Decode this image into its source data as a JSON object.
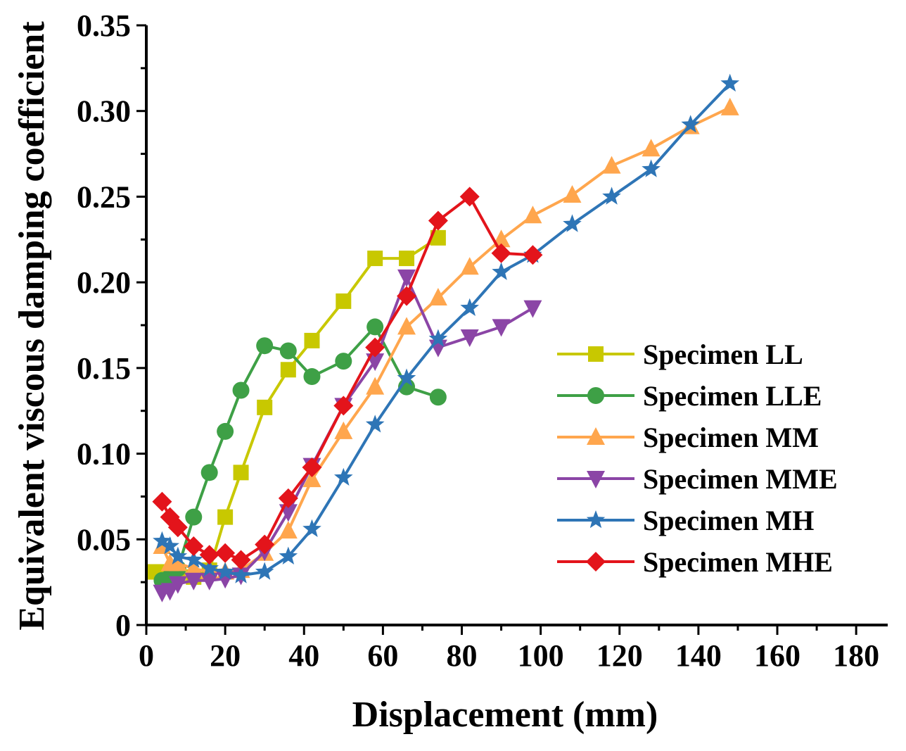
{
  "chart_data": {
    "type": "line",
    "xlabel": "Displacement (mm)",
    "ylabel": "Equivalent viscous damping coefficient",
    "xlim": [
      0,
      188
    ],
    "ylim": [
      0,
      0.35
    ],
    "x_ticks": [
      0,
      20,
      40,
      60,
      80,
      100,
      120,
      140,
      160,
      180
    ],
    "x_tick_labels": [
      "0",
      "20",
      "40",
      "60",
      "80",
      "100",
      "120",
      "140",
      "160",
      "180"
    ],
    "y_ticks": [
      0,
      0.05,
      0.1,
      0.15,
      0.2,
      0.25,
      0.3,
      0.35
    ],
    "y_tick_labels": [
      "0",
      "0.05",
      "0.10",
      "0.15",
      "0.20",
      "0.25",
      "0.30",
      "0.35"
    ],
    "grid": false,
    "legend_position": "right",
    "series": [
      {
        "name": "Specimen LL",
        "color": "#C8C800",
        "marker": "square",
        "x": [
          2,
          4,
          6,
          8,
          12,
          16,
          20,
          24,
          30,
          36,
          42,
          50,
          58,
          66,
          74
        ],
        "y": [
          0.031,
          0.031,
          0.03,
          0.029,
          0.028,
          0.032,
          0.063,
          0.089,
          0.127,
          0.149,
          0.166,
          0.189,
          0.214,
          0.214,
          0.226
        ]
      },
      {
        "name": "Specimen LLE",
        "color": "#3EA046",
        "marker": "circle",
        "x": [
          4,
          6,
          8,
          12,
          16,
          20,
          24,
          30,
          36,
          42,
          50,
          58,
          66,
          74
        ],
        "y": [
          0.026,
          0.028,
          0.033,
          0.063,
          0.089,
          0.113,
          0.137,
          0.163,
          0.16,
          0.145,
          0.154,
          0.174,
          0.139,
          0.133
        ]
      },
      {
        "name": "Specimen MM",
        "color": "#FFA64D",
        "marker": "triangle-up",
        "x": [
          4,
          6,
          8,
          12,
          16,
          20,
          24,
          30,
          36,
          42,
          50,
          58,
          66,
          74,
          82,
          90,
          98,
          108,
          118,
          128,
          138,
          148
        ],
        "y": [
          0.046,
          0.036,
          0.036,
          0.033,
          0.031,
          0.031,
          0.032,
          0.042,
          0.055,
          0.085,
          0.113,
          0.139,
          0.174,
          0.191,
          0.209,
          0.225,
          0.239,
          0.251,
          0.268,
          0.278,
          0.291,
          0.302
        ]
      },
      {
        "name": "Specimen MME",
        "color": "#8B45A6",
        "marker": "triangle-down",
        "x": [
          4,
          6,
          8,
          12,
          16,
          20,
          24,
          30,
          36,
          42,
          50,
          58,
          66,
          74,
          82,
          90,
          98
        ],
        "y": [
          0.019,
          0.02,
          0.024,
          0.026,
          0.026,
          0.027,
          0.029,
          0.043,
          0.066,
          0.093,
          0.128,
          0.154,
          0.203,
          0.162,
          0.168,
          0.174,
          0.185
        ]
      },
      {
        "name": "Specimen MH",
        "color": "#2E75B6",
        "marker": "star",
        "x": [
          4,
          6,
          8,
          12,
          16,
          20,
          24,
          30,
          36,
          42,
          50,
          58,
          66,
          74,
          82,
          90,
          98,
          108,
          118,
          128,
          138,
          148
        ],
        "y": [
          0.049,
          0.046,
          0.04,
          0.038,
          0.033,
          0.031,
          0.029,
          0.031,
          0.04,
          0.056,
          0.086,
          0.117,
          0.144,
          0.167,
          0.185,
          0.206,
          0.216,
          0.234,
          0.25,
          0.266,
          0.292,
          0.316
        ]
      },
      {
        "name": "Specimen MHE",
        "color": "#E3141B",
        "marker": "diamond",
        "x": [
          4,
          6,
          8,
          12,
          16,
          20,
          24,
          30,
          36,
          42,
          50,
          58,
          66,
          74,
          82,
          90,
          98
        ],
        "y": [
          0.072,
          0.063,
          0.057,
          0.046,
          0.041,
          0.042,
          0.038,
          0.047,
          0.074,
          0.092,
          0.128,
          0.162,
          0.192,
          0.236,
          0.25,
          0.217,
          0.216
        ]
      }
    ]
  }
}
